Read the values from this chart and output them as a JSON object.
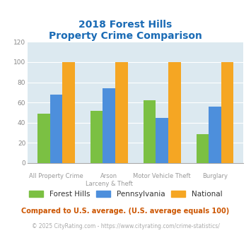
{
  "title_line1": "2018 Forest Hills",
  "title_line2": "Property Crime Comparison",
  "cat_labels_row1": [
    "",
    "Arson",
    "Motor Vehicle Theft",
    ""
  ],
  "cat_labels_row2": [
    "All Property Crime",
    "Larceny & Theft",
    "",
    "Burglary"
  ],
  "forest_hills": [
    49,
    52,
    62,
    29
  ],
  "pennsylvania": [
    68,
    74,
    45,
    56
  ],
  "national": [
    100,
    100,
    100,
    100
  ],
  "color_fh": "#7bc043",
  "color_pa": "#4d8fdc",
  "color_nat": "#f5a623",
  "ylim": [
    0,
    120
  ],
  "yticks": [
    0,
    20,
    40,
    60,
    80,
    100,
    120
  ],
  "background_color": "#dce9f0",
  "legend_labels": [
    "Forest Hills",
    "Pennsylvania",
    "National"
  ],
  "footnote1": "Compared to U.S. average. (U.S. average equals 100)",
  "footnote2": "© 2025 CityRating.com - https://www.cityrating.com/crime-statistics/",
  "title_color": "#1a6bb5",
  "footnote1_color": "#cc5500",
  "footnote2_color": "#aaaaaa",
  "legend_text_color": "#333333"
}
